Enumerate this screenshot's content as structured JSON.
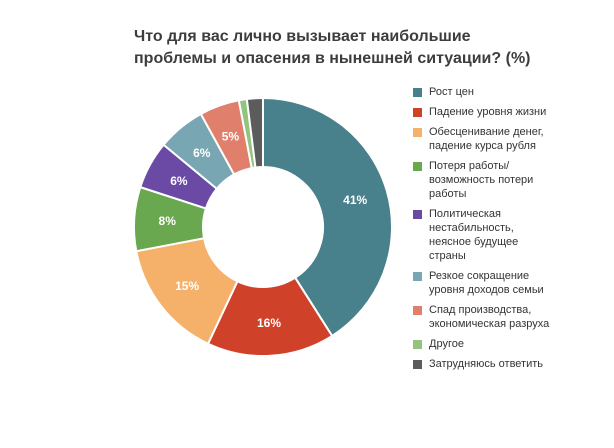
{
  "chart_data": {
    "type": "pie",
    "title": [
      "Что для вас лично вызывает наибольшие",
      "проблемы и опасения в нынешней ситуации? (%)"
    ],
    "categories": [
      "Рост цен",
      "Падение уровня жизни",
      "Обесценивание денег, падение курса рубля",
      "Потеря работы/ возможность потери работы",
      "Политическая нестабильность, неясное будущее страны",
      "Резкое сокращение уровня доходов семьи",
      "Спад производства, экономическая разруха",
      "Другое",
      "Затрудняюсь ответить"
    ],
    "values": [
      41,
      16,
      15,
      8,
      6,
      6,
      5,
      1,
      2
    ],
    "data_labels": [
      "41%",
      "16%",
      "15%",
      "8%",
      "6%",
      "6%",
      "5%",
      "",
      ""
    ],
    "colors": [
      "#48808c",
      "#cf4229",
      "#f5b06a",
      "#6aa84f",
      "#6a4aa5",
      "#78a7b3",
      "#e07f6b",
      "#92c47e",
      "#5c5c5c"
    ],
    "legend": {
      "position": "right",
      "entries": [
        [
          "Рост цен"
        ],
        [
          "Падение уровня жизни"
        ],
        [
          "Обесценивание денег,",
          "падение курса рубля"
        ],
        [
          "Потеря работы/",
          "возможность потери",
          "работы"
        ],
        [
          "Политическая",
          "нестабильность,",
          "неясное будущее",
          "страны"
        ],
        [
          "Резкое сокращение",
          "уровня доходов семьи"
        ],
        [
          "Спад производства,",
          "экономическая разруха"
        ],
        [
          "Другое"
        ],
        [
          "Затрудняюсь ответить"
        ]
      ]
    }
  }
}
